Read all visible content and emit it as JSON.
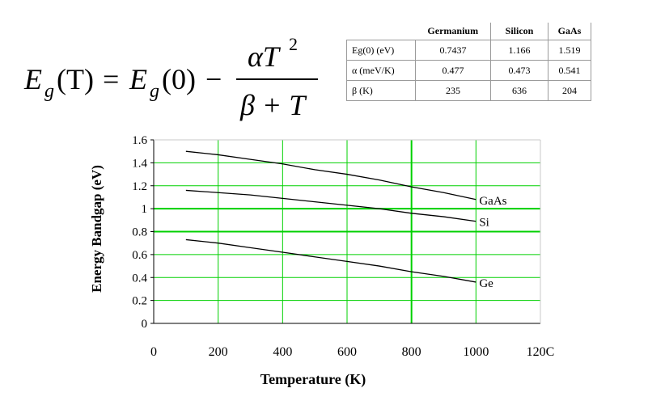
{
  "formula": {
    "lhs_E": "E",
    "lhs_sub": "g",
    "lhs_T": "(T)",
    "eq": "=",
    "rhs_E": "E",
    "rhs_sub": "g",
    "rhs_0": "(0)",
    "minus": "−",
    "num_alpha": "αT",
    "num_exp": "2",
    "den": "β + T"
  },
  "table": {
    "columns": [
      "Germanium",
      "Silicon",
      "GaAs"
    ],
    "rows": [
      {
        "label": "Eg(0) (eV)",
        "values": [
          "0.7437",
          "1.166",
          "1.519"
        ]
      },
      {
        "label": "α (meV/K)",
        "values": [
          "0.477",
          "0.473",
          "0.541"
        ]
      },
      {
        "label": "β (K)",
        "values": [
          "235",
          "636",
          "204"
        ]
      }
    ]
  },
  "chart_data": {
    "type": "line",
    "xlabel": "Temperature (K)",
    "ylabel": "Energy Bandgap (eV)",
    "xlim": [
      0,
      1200
    ],
    "ylim": [
      0,
      1.6
    ],
    "x_ticks": [
      "0",
      "200",
      "400",
      "600",
      "800",
      "1000",
      "120C"
    ],
    "y_ticks": [
      "0",
      "0.2",
      "0.4",
      "0.6",
      "0.8",
      "1",
      "1.2",
      "1.4",
      "1.6"
    ],
    "grid": true,
    "grid_color": "#00d000",
    "series": [
      {
        "name": "GaAs",
        "x": [
          100,
          200,
          300,
          400,
          500,
          600,
          700,
          800,
          900,
          1000
        ],
        "y": [
          1.5,
          1.47,
          1.43,
          1.39,
          1.34,
          1.3,
          1.25,
          1.19,
          1.14,
          1.08
        ]
      },
      {
        "name": "Si",
        "x": [
          100,
          200,
          300,
          400,
          500,
          600,
          700,
          800,
          900,
          1000
        ],
        "y": [
          1.16,
          1.14,
          1.12,
          1.09,
          1.06,
          1.03,
          1.0,
          0.96,
          0.93,
          0.89
        ]
      },
      {
        "name": "Ge",
        "x": [
          100,
          200,
          300,
          400,
          500,
          600,
          700,
          800,
          900,
          1000
        ],
        "y": [
          0.73,
          0.7,
          0.66,
          0.62,
          0.58,
          0.54,
          0.5,
          0.45,
          0.41,
          0.36
        ]
      }
    ]
  }
}
